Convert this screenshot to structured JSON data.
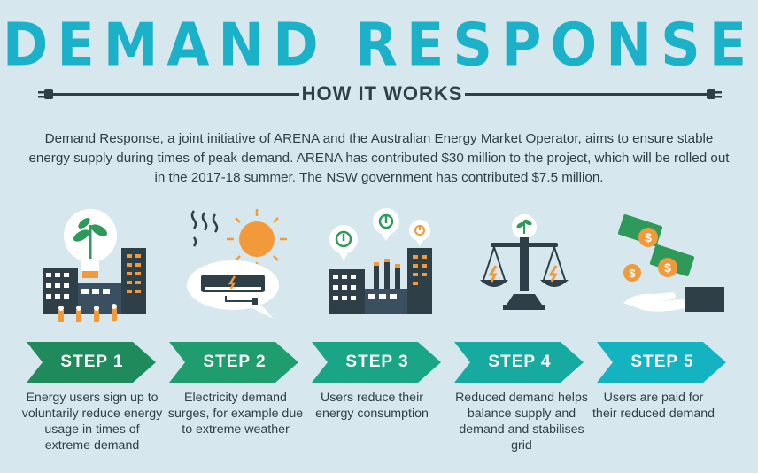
{
  "header": {
    "title": "DEMAND RESPONSE",
    "subtitle": "HOW IT WORKS"
  },
  "intro": "Demand Response, a joint initiative of ARENA and the Australian Energy Market Operator, aims to ensure stable energy supply during times of peak demand. ARENA has contributed $30 million to the project, which will be rolled out in the 2017-18 summer. The NSW government has contributed $7.5 million.",
  "steps": [
    {
      "label": "STEP 1",
      "description": "Energy users sign up to voluntarily reduce energy usage in times of extreme demand",
      "color": "#1f8a5c",
      "icon": "lightbulb-city-icon"
    },
    {
      "label": "STEP 2",
      "description": "Electricity demand surges, for example due to extreme weather",
      "color": "#1f9d6e",
      "icon": "air-conditioner-sun-icon"
    },
    {
      "label": "STEP 3",
      "description": "Users reduce their energy consumption",
      "color": "#1aa586",
      "icon": "factory-power-icon"
    },
    {
      "label": "STEP 4",
      "description": "Reduced demand helps balance supply and demand and stabilises grid",
      "color": "#17aaa0",
      "icon": "balance-scale-icon"
    },
    {
      "label": "STEP 5",
      "description": "Users are paid for their reduced demand",
      "color": "#13b3c2",
      "icon": "payment-hand-icon"
    }
  ],
  "colors": {
    "title": "#1bb2c9",
    "dark": "#2e3f48",
    "orange": "#f29a3a",
    "green": "#2e9a5a",
    "background": "#d6e8ed"
  }
}
